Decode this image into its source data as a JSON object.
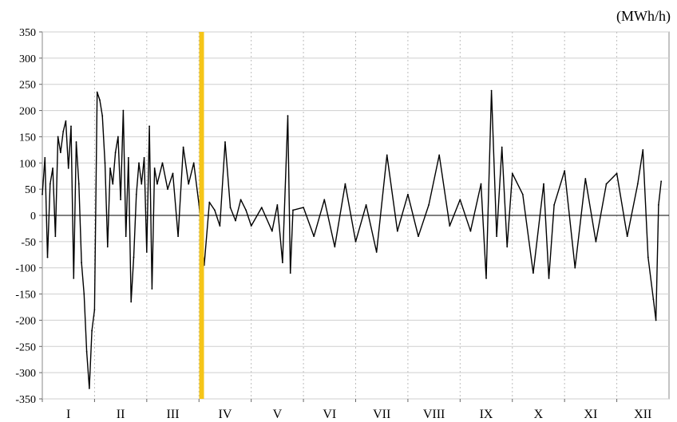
{
  "chart_data": {
    "type": "line",
    "unit_label": "(MWh/h)",
    "title": "",
    "xlabel": "",
    "ylabel": "",
    "ylim": [
      -350,
      350
    ],
    "y_ticks": [
      350,
      300,
      250,
      200,
      150,
      100,
      50,
      0,
      -50,
      -100,
      -150,
      -200,
      -250,
      -300,
      -350
    ],
    "categories": [
      "I",
      "II",
      "III",
      "IV",
      "V",
      "VI",
      "VII",
      "VIII",
      "IX",
      "X",
      "XI",
      "XII"
    ],
    "grid": {
      "horizontal": true,
      "vertical": true,
      "vertical_style": "dotted"
    },
    "marker": {
      "position_month": 3.05,
      "color": "#F5C518"
    },
    "series": [
      {
        "color": "#000000",
        "points": [
          [
            0.0,
            40
          ],
          [
            0.05,
            110
          ],
          [
            0.1,
            -80
          ],
          [
            0.15,
            60
          ],
          [
            0.2,
            90
          ],
          [
            0.25,
            -40
          ],
          [
            0.3,
            150
          ],
          [
            0.35,
            120
          ],
          [
            0.4,
            160
          ],
          [
            0.45,
            180
          ],
          [
            0.5,
            90
          ],
          [
            0.55,
            170
          ],
          [
            0.6,
            -120
          ],
          [
            0.65,
            140
          ],
          [
            0.7,
            60
          ],
          [
            0.75,
            -90
          ],
          [
            0.8,
            -150
          ],
          [
            0.85,
            -260
          ],
          [
            0.9,
            -330
          ],
          [
            0.95,
            -220
          ],
          [
            1.0,
            -180
          ],
          [
            1.05,
            235
          ],
          [
            1.1,
            220
          ],
          [
            1.15,
            190
          ],
          [
            1.2,
            100
          ],
          [
            1.25,
            -60
          ],
          [
            1.3,
            90
          ],
          [
            1.35,
            60
          ],
          [
            1.4,
            120
          ],
          [
            1.45,
            150
          ],
          [
            1.5,
            30
          ],
          [
            1.55,
            200
          ],
          [
            1.6,
            -40
          ],
          [
            1.65,
            110
          ],
          [
            1.7,
            -165
          ],
          [
            1.75,
            -80
          ],
          [
            1.8,
            40
          ],
          [
            1.85,
            100
          ],
          [
            1.9,
            60
          ],
          [
            1.95,
            110
          ],
          [
            2.0,
            -70
          ],
          [
            2.05,
            170
          ],
          [
            2.1,
            -140
          ],
          [
            2.15,
            90
          ],
          [
            2.2,
            60
          ],
          [
            2.3,
            100
          ],
          [
            2.4,
            50
          ],
          [
            2.5,
            80
          ],
          [
            2.6,
            -40
          ],
          [
            2.7,
            130
          ],
          [
            2.8,
            60
          ],
          [
            2.9,
            100
          ],
          [
            3.0,
            20
          ],
          [
            3.1,
            -95
          ],
          [
            3.2,
            25
          ],
          [
            3.3,
            10
          ],
          [
            3.4,
            -20
          ],
          [
            3.5,
            140
          ],
          [
            3.6,
            15
          ],
          [
            3.7,
            -10
          ],
          [
            3.8,
            30
          ],
          [
            3.9,
            10
          ],
          [
            4.0,
            -20
          ],
          [
            4.2,
            15
          ],
          [
            4.4,
            -30
          ],
          [
            4.5,
            20
          ],
          [
            4.6,
            -90
          ],
          [
            4.7,
            190
          ],
          [
            4.75,
            -110
          ],
          [
            4.8,
            10
          ],
          [
            5.0,
            15
          ],
          [
            5.2,
            -40
          ],
          [
            5.4,
            30
          ],
          [
            5.6,
            -60
          ],
          [
            5.8,
            60
          ],
          [
            6.0,
            -50
          ],
          [
            6.2,
            20
          ],
          [
            6.4,
            -70
          ],
          [
            6.6,
            115
          ],
          [
            6.8,
            -30
          ],
          [
            7.0,
            40
          ],
          [
            7.2,
            -40
          ],
          [
            7.4,
            20
          ],
          [
            7.6,
            115
          ],
          [
            7.8,
            -20
          ],
          [
            8.0,
            30
          ],
          [
            8.2,
            -30
          ],
          [
            8.4,
            60
          ],
          [
            8.5,
            -120
          ],
          [
            8.6,
            238
          ],
          [
            8.7,
            -40
          ],
          [
            8.8,
            130
          ],
          [
            8.9,
            -60
          ],
          [
            9.0,
            80
          ],
          [
            9.2,
            40
          ],
          [
            9.4,
            -110
          ],
          [
            9.6,
            60
          ],
          [
            9.7,
            -120
          ],
          [
            9.8,
            20
          ],
          [
            10.0,
            85
          ],
          [
            10.2,
            -100
          ],
          [
            10.4,
            70
          ],
          [
            10.6,
            -50
          ],
          [
            10.8,
            60
          ],
          [
            11.0,
            80
          ],
          [
            11.2,
            -40
          ],
          [
            11.4,
            60
          ],
          [
            11.5,
            125
          ],
          [
            11.6,
            -80
          ],
          [
            11.7,
            -160
          ],
          [
            11.75,
            -200
          ],
          [
            11.8,
            20
          ],
          [
            11.85,
            65
          ]
        ]
      }
    ]
  }
}
